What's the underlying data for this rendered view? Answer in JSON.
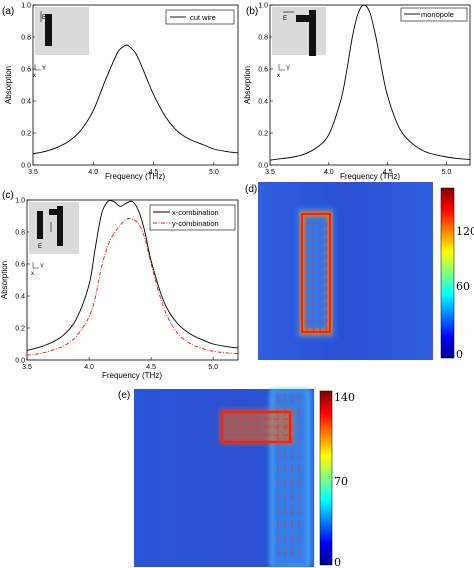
{
  "chart_data": [
    {
      "id": "a",
      "type": "line",
      "panel_label": "(a)",
      "xlabel": "Frequency (THz)",
      "ylabel": "Absorption",
      "xlim": [
        3.5,
        5.2
      ],
      "ylim": [
        0,
        1.0
      ],
      "xticks": [
        "3.5",
        "4.0",
        "4.5",
        "5.0"
      ],
      "yticks": [
        "0.0",
        "0.2",
        "0.4",
        "0.6",
        "0.8",
        "1.0"
      ],
      "legend_position": "top-right",
      "inset_labels": {
        "e": "E",
        "x": "x",
        "y": "Y"
      },
      "series": [
        {
          "name": "cut wire",
          "color": "#000000",
          "dash": "solid",
          "x": [
            3.5,
            3.6,
            3.7,
            3.8,
            3.9,
            4.0,
            4.1,
            4.2,
            4.25,
            4.28,
            4.3,
            4.35,
            4.4,
            4.5,
            4.6,
            4.7,
            4.8,
            4.9,
            5.0,
            5.1,
            5.2
          ],
          "y": [
            0.07,
            0.085,
            0.11,
            0.15,
            0.22,
            0.34,
            0.53,
            0.7,
            0.74,
            0.75,
            0.74,
            0.7,
            0.62,
            0.44,
            0.3,
            0.21,
            0.16,
            0.13,
            0.1,
            0.085,
            0.075
          ]
        }
      ]
    },
    {
      "id": "b",
      "type": "line",
      "panel_label": "(b)",
      "xlabel": "Frequency (THz)",
      "ylabel": "Absorption",
      "xlim": [
        3.5,
        5.2
      ],
      "ylim": [
        0,
        1.0
      ],
      "xticks": [
        "3.5",
        "4.0",
        "4.5",
        "5.0"
      ],
      "yticks": [
        "0.0",
        "0.2",
        "0.4",
        "0.6",
        "0.8",
        "1.0"
      ],
      "legend_position": "top-right",
      "inset_labels": {
        "e": "E",
        "x": "x",
        "y": "Y"
      },
      "series": [
        {
          "name": "monopole",
          "color": "#000000",
          "dash": "solid",
          "x": [
            3.5,
            3.6,
            3.7,
            3.8,
            3.9,
            4.0,
            4.1,
            4.15,
            4.2,
            4.25,
            4.3,
            4.35,
            4.4,
            4.45,
            4.5,
            4.6,
            4.7,
            4.8,
            4.9,
            5.0,
            5.1,
            5.2
          ],
          "y": [
            0.03,
            0.04,
            0.05,
            0.07,
            0.11,
            0.19,
            0.4,
            0.58,
            0.8,
            0.95,
            1.0,
            0.95,
            0.8,
            0.6,
            0.43,
            0.23,
            0.14,
            0.09,
            0.065,
            0.05,
            0.04,
            0.035
          ]
        }
      ]
    },
    {
      "id": "c",
      "type": "line",
      "panel_label": "(c)",
      "xlabel": "Frequency (THz)",
      "ylabel": "Absorption",
      "xlim": [
        3.5,
        5.2
      ],
      "ylim": [
        0,
        1.0
      ],
      "xticks": [
        "3.5",
        "4.0",
        "4.5",
        "5.0"
      ],
      "yticks": [
        "0.0",
        "0.2",
        "0.4",
        "0.6",
        "0.8",
        "1.0"
      ],
      "legend_position": "top-right",
      "inset_labels": {
        "e": "E",
        "x": "x",
        "y": "Y"
      },
      "series": [
        {
          "name": "x-combination",
          "color": "#000000",
          "dash": "solid",
          "x": [
            3.5,
            3.6,
            3.7,
            3.8,
            3.9,
            4.0,
            4.05,
            4.1,
            4.15,
            4.2,
            4.25,
            4.3,
            4.35,
            4.4,
            4.45,
            4.5,
            4.6,
            4.7,
            4.8,
            4.9,
            5.0,
            5.1,
            5.2
          ],
          "y": [
            0.06,
            0.08,
            0.11,
            0.16,
            0.26,
            0.47,
            0.7,
            0.91,
            0.99,
            0.99,
            0.96,
            0.98,
            0.99,
            0.93,
            0.8,
            0.62,
            0.37,
            0.24,
            0.17,
            0.13,
            0.1,
            0.085,
            0.075
          ]
        },
        {
          "name": "y-combination",
          "color": "#d62020",
          "dash": "dashdot",
          "x": [
            3.5,
            3.6,
            3.7,
            3.8,
            3.9,
            4.0,
            4.05,
            4.1,
            4.15,
            4.2,
            4.25,
            4.3,
            4.35,
            4.4,
            4.45,
            4.5,
            4.6,
            4.7,
            4.8,
            4.9,
            5.0,
            5.1,
            5.2
          ],
          "y": [
            0.03,
            0.04,
            0.06,
            0.09,
            0.15,
            0.27,
            0.39,
            0.58,
            0.71,
            0.79,
            0.84,
            0.88,
            0.88,
            0.85,
            0.76,
            0.6,
            0.33,
            0.18,
            0.11,
            0.075,
            0.055,
            0.045,
            0.04
          ]
        }
      ]
    }
  ],
  "field_maps": [
    {
      "id": "d",
      "panel_label": "(d)",
      "colorbar_ticks": [
        "120",
        "60",
        "0"
      ]
    },
    {
      "id": "e",
      "panel_label": "(e)",
      "colorbar_ticks": [
        "140",
        "70",
        "0"
      ]
    }
  ],
  "colors": {
    "field_bg": "#2c57d8",
    "hot": "#ff1a00",
    "arrow": "#ff2a1a"
  }
}
